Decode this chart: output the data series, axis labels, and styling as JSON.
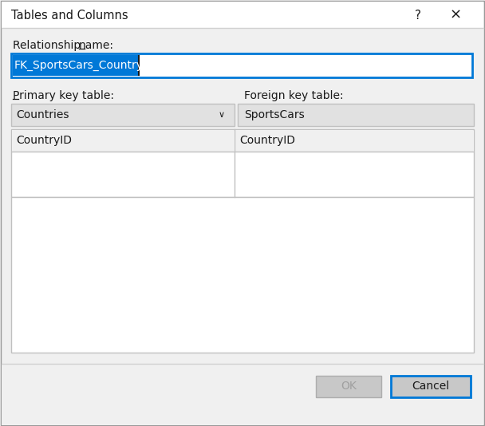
{
  "title": "Tables and Columns",
  "bg_color": "#f0f0f0",
  "white": "#ffffff",
  "relationship_label": "Relationship name:",
  "relationship_value": "FK_SportsCars_Country",
  "primary_key_label": "Primary key table:",
  "foreign_key_label": "Foreign key table:",
  "primary_table_value": "Countries",
  "foreign_table_value": "SportsCars",
  "pk_column": "CountryID",
  "fk_column": "CountryID",
  "ok_label": "OK",
  "cancel_label": "Cancel",
  "text_color": "#1a1a1a",
  "blue_border": "#0078d7",
  "selection_bg": "#0078d7",
  "selection_text": "#ffffff",
  "dropdown_bg": "#e1e1e1",
  "button_bg": "#c8c8c8",
  "button_border": "#adadad",
  "cancel_border": "#0078d7",
  "grid_border": "#c0c0c0",
  "separator_color": "#d0d0d0",
  "titlebar_bg": "#ffffff",
  "dialog_outer_border": "#999999",
  "ok_text_color": "#a0a0a0"
}
